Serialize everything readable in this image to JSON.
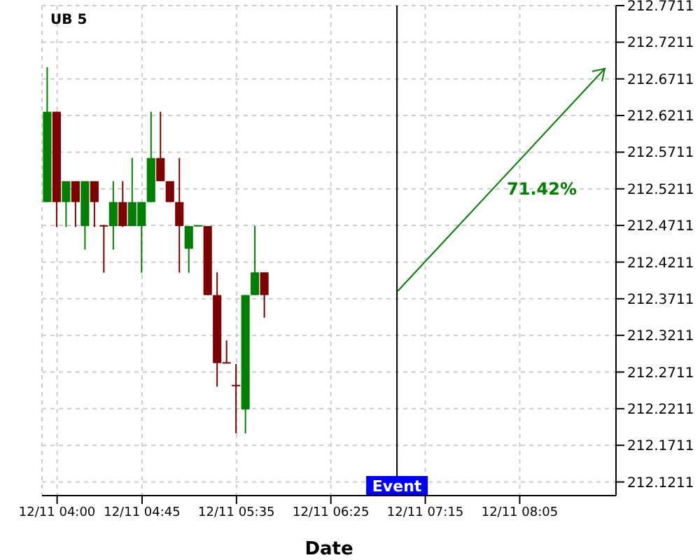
{
  "chart_data": {
    "type": "candlestick",
    "title": "UB 5",
    "xlabel": "Date",
    "x": [
      "--12-11T03:55",
      "--12-11T04:00",
      "--12-11T04:05",
      "--12-11T04:10",
      "--12-11T04:15",
      "--12-11T04:20",
      "--12-11T04:25",
      "--12-11T04:30",
      "--12-11T04:35",
      "--12-11T04:40",
      "--12-11T04:45",
      "--12-11T04:50",
      "--12-11T04:55",
      "--12-11T05:00",
      "--12-11T05:05",
      "--12-11T05:10",
      "--12-11T05:15",
      "--12-11T05:20",
      "--12-11T05:25",
      "--12-11T05:30",
      "--12-11T05:35",
      "--12-11T05:40",
      "--12-11T05:45",
      "--12-11T05:50"
    ],
    "ohlc": [
      [
        212.503,
        212.687,
        212.503,
        212.6263
      ],
      [
        212.6263,
        212.6263,
        212.469,
        212.503
      ],
      [
        212.503,
        212.5315,
        212.469,
        212.5315
      ],
      [
        212.5315,
        212.5315,
        212.469,
        212.503
      ],
      [
        212.4703,
        212.5315,
        212.4381,
        212.5315
      ],
      [
        212.5315,
        212.5315,
        212.469,
        212.503
      ],
      [
        212.4715,
        212.4715,
        212.4066,
        212.4703
      ],
      [
        212.4703,
        212.5315,
        212.4381,
        212.503
      ],
      [
        212.503,
        212.5315,
        212.469,
        212.4703
      ],
      [
        212.4703,
        212.5631,
        212.4703,
        212.503
      ],
      [
        212.4703,
        212.503,
        212.4066,
        212.503
      ],
      [
        212.503,
        212.6263,
        212.503,
        212.5631
      ],
      [
        212.5631,
        212.6263,
        212.5315,
        212.5315
      ],
      [
        212.5315,
        212.5315,
        212.503,
        212.503
      ],
      [
        212.503,
        212.5631,
        212.4066,
        212.4703
      ],
      [
        212.4393,
        212.4703,
        212.4066,
        212.4703
      ],
      [
        212.4703,
        212.4715,
        212.4703,
        212.4715
      ],
      [
        212.4703,
        212.4703,
        212.3761,
        212.3761
      ],
      [
        212.3761,
        212.4071,
        212.2511,
        212.2833
      ],
      [
        212.2845,
        212.3143,
        212.2833,
        212.2833
      ],
      [
        212.2536,
        212.2821,
        212.1874,
        212.2524
      ],
      [
        212.2201,
        212.3761,
        212.1874,
        212.3761
      ],
      [
        212.3761,
        212.4703,
        212.3761,
        212.4071
      ],
      [
        212.4071,
        212.4071,
        212.3453,
        212.3761
      ]
    ],
    "annotations": [
      "71.42%"
    ],
    "ref_lines": [
      {
        "axis": "x",
        "value": "--12-11T07:00",
        "label": "Event",
        "color": "#000000"
      }
    ],
    "xlim": [
      "--12-11T03:52",
      "--12-11T08:56"
    ],
    "xticks": [
      {
        "value": "--12-11T04:00",
        "label": "12/11 04:00"
      },
      {
        "value": "--12-11T04:45",
        "label": "12/11 04:45"
      },
      {
        "value": "--12-11T05:35",
        "label": "12/11 05:35"
      },
      {
        "value": "--12-11T06:25",
        "label": "12/11 06:25"
      },
      {
        "value": "--12-11T07:15",
        "label": "12/11 07:15"
      },
      {
        "value": "--12-11T08:05",
        "label": "12/11 08:05"
      }
    ],
    "ylim": [
      212.1025,
      212.7711
    ],
    "yticks": [
      212.1211,
      212.1711,
      212.2211,
      212.2711,
      212.3211,
      212.3711,
      212.4211,
      212.4711,
      212.5211,
      212.5711,
      212.6211,
      212.6711,
      212.7211,
      212.7711
    ],
    "grid": true
  }
}
